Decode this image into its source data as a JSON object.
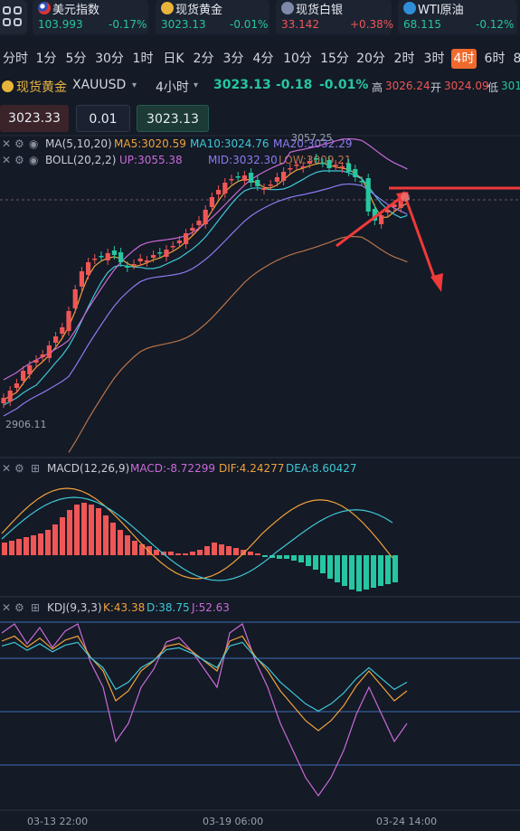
{
  "tickers": [
    {
      "name": "美元指数",
      "price": "103.993",
      "change": "-0.17%",
      "dir": "down",
      "flag": "us-flag-icon"
    },
    {
      "name": "现货黄金",
      "price": "3023.13",
      "change": "-0.01%",
      "dir": "down",
      "flag": "gold-icon"
    },
    {
      "name": "现货白银",
      "price": "33.142",
      "change": "+0.38%",
      "dir": "up",
      "flag": "silver-icon"
    },
    {
      "name": "WTI原油",
      "price": "68.115",
      "change": "-0.12%",
      "dir": "down",
      "flag": "oil-icon"
    }
  ],
  "timeframes": [
    "分时",
    "1分",
    "5分",
    "30分",
    "1时",
    "日K",
    "2分",
    "3分",
    "4分",
    "10分",
    "15分",
    "20分",
    "2时",
    "3时",
    "4时",
    "6时",
    "8"
  ],
  "active_timeframe": "4时",
  "symbol": {
    "name": "现货黄金",
    "code": "XAUUSD",
    "period": "4小时",
    "last": "3023.13",
    "change": "-0.18",
    "change_pct": "-0.01%",
    "high_label": "高",
    "high": "3026.24",
    "open_label": "开",
    "open": "3024.09",
    "low_label": "低",
    "low": "301"
  },
  "order": {
    "sell_price": "3023.33",
    "lots": "0.01",
    "buy_price": "3023.13"
  },
  "ma_legend": {
    "label": "MA(5,10,20)",
    "ma5": "MA5:3020.59",
    "ma10": "MA10:3024.76",
    "ma20": "MA20:3032.29"
  },
  "boll_legend": {
    "label": "BOLL(20,2,2)",
    "up": "UP:3055.38",
    "mid": "MID:3032.30",
    "low": "LOW:3009.21"
  },
  "price_annotations": {
    "high": "3057.25",
    "low": "2906.11"
  },
  "macd_legend": {
    "label": "MACD(12,26,9)",
    "macd": "MACD:-8.72299",
    "dif": "DIF:4.24277",
    "dea": "DEA:8.60427"
  },
  "kdj_legend": {
    "label": "KDJ(9,3,3)",
    "k": "K:43.38",
    "d": "D:38.75",
    "j": "J:52.63"
  },
  "time_axis": [
    "03-13 22:00",
    "03-19 06:00",
    "03-24 14:00"
  ],
  "colors": {
    "background": "#141a26",
    "up_candle": "#ef5656",
    "down_candle": "#26c6a2",
    "active_tab": "#ef6a2d",
    "ma5": "#f0a13c",
    "ma10": "#3fc7d6",
    "ma20": "#8a7cf0",
    "boll_up": "#c86ad8",
    "arrow": "#ef3a3a"
  }
}
